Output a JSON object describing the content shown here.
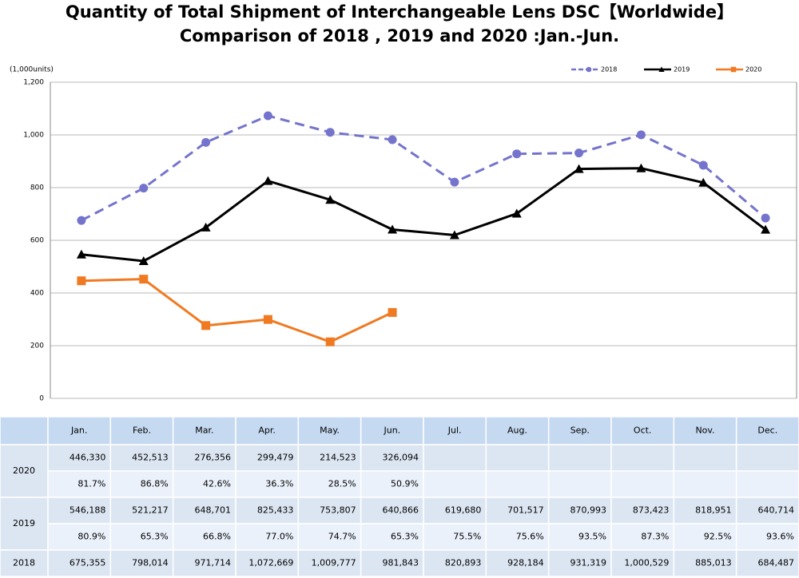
{
  "chart_data": {
    "type": "line",
    "title": "Quantity of Total Shipment of Interchangeable Lens DSC【Worldwide】",
    "subtitle": "Comparison of 2018 , 2019 and 2020 :Jan.-Jun.",
    "y_label": "(1,000units)",
    "categories": [
      "Jan.",
      "Feb.",
      "Mar.",
      "Apr.",
      "May.",
      "Jun.",
      "Jul.",
      "Aug.",
      "Sep.",
      "Oct.",
      "Nov.",
      "Dec."
    ],
    "ylim": [
      0,
      1200
    ],
    "yticks": [
      0,
      200,
      400,
      600,
      800,
      {
        "value": 1000,
        "label": "1,000"
      },
      {
        "value": 1200,
        "label": "1,200"
      }
    ],
    "grid": true,
    "legend": "top-right",
    "series": [
      {
        "name": "2018",
        "color": "#7474cc",
        "dash": true,
        "marker": "circle",
        "values": [
          675.355,
          798.014,
          971.714,
          1072.669,
          1009.777,
          981.843,
          820.893,
          928.184,
          931.319,
          1000.529,
          885.013,
          684.487
        ],
        "value_labels": [
          "675,355",
          "798,014",
          "971,714",
          "1,072,669",
          "1,009,777",
          "981,843",
          "820,893",
          "928,184",
          "931,319",
          "1,000,529",
          "885,013",
          "684,487"
        ]
      },
      {
        "name": "2019",
        "color": "#000000",
        "dash": false,
        "marker": "triangle",
        "values": [
          546.188,
          521.217,
          648.701,
          825.433,
          753.807,
          640.866,
          619.68,
          701.517,
          870.993,
          873.423,
          818.951,
          640.714
        ],
        "value_labels": [
          "546,188",
          "521,217",
          "648,701",
          "825,433",
          "753,807",
          "640,866",
          "619,680",
          "701,517",
          "870,993",
          "873,423",
          "818,951",
          "640,714"
        ],
        "ratios": [
          "80.9%",
          "65.3%",
          "66.8%",
          "77.0%",
          "74.7%",
          "65.3%",
          "75.5%",
          "75.6%",
          "93.5%",
          "87.3%",
          "92.5%",
          "93.6%"
        ]
      },
      {
        "name": "2020",
        "color": "#f07a22",
        "dash": false,
        "marker": "square",
        "values": [
          446.33,
          452.513,
          276.356,
          299.479,
          214.523,
          326.094,
          null,
          null,
          null,
          null,
          null,
          null
        ],
        "value_labels": [
          "446,330",
          "452,513",
          "276,356",
          "299,479",
          "214,523",
          "326,094",
          null,
          null,
          null,
          null,
          null,
          null
        ],
        "ratios": [
          "81.7%",
          "86.8%",
          "42.6%",
          "36.3%",
          "28.5%",
          "50.9%",
          null,
          null,
          null,
          null,
          null,
          null
        ]
      }
    ]
  }
}
